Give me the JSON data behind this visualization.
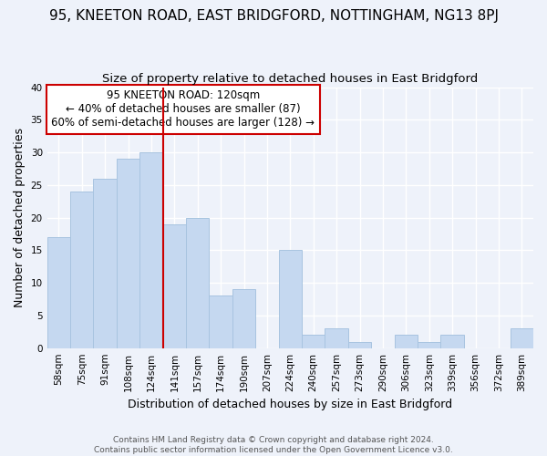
{
  "title": "95, KNEETON ROAD, EAST BRIDGFORD, NOTTINGHAM, NG13 8PJ",
  "subtitle": "Size of property relative to detached houses in East Bridgford",
  "xlabel": "Distribution of detached houses by size in East Bridgford",
  "ylabel": "Number of detached properties",
  "bar_labels": [
    "58sqm",
    "75sqm",
    "91sqm",
    "108sqm",
    "124sqm",
    "141sqm",
    "157sqm",
    "174sqm",
    "190sqm",
    "207sqm",
    "224sqm",
    "240sqm",
    "257sqm",
    "273sqm",
    "290sqm",
    "306sqm",
    "323sqm",
    "339sqm",
    "356sqm",
    "372sqm",
    "389sqm"
  ],
  "bar_values": [
    17,
    24,
    26,
    29,
    30,
    19,
    20,
    8,
    9,
    0,
    15,
    2,
    3,
    1,
    0,
    2,
    1,
    2,
    0,
    0,
    3
  ],
  "bar_color": "#c5d8f0",
  "bar_edge_color": "#a8c4e0",
  "vline_x_idx": 4,
  "vline_color": "#cc0000",
  "annotation_text": "95 KNEETON ROAD: 120sqm\n← 40% of detached houses are smaller (87)\n60% of semi-detached houses are larger (128) →",
  "annotation_box_color": "#ffffff",
  "annotation_box_edge": "#cc0000",
  "ylim": [
    0,
    40
  ],
  "yticks": [
    0,
    5,
    10,
    15,
    20,
    25,
    30,
    35,
    40
  ],
  "footnote": "Contains HM Land Registry data © Crown copyright and database right 2024.\nContains public sector information licensed under the Open Government Licence v3.0.",
  "background_color": "#eef2fa",
  "grid_color": "#ffffff",
  "title_fontsize": 11,
  "subtitle_fontsize": 9.5,
  "axis_label_fontsize": 9,
  "tick_fontsize": 7.5,
  "annotation_fontsize": 8.5,
  "footnote_fontsize": 6.5
}
